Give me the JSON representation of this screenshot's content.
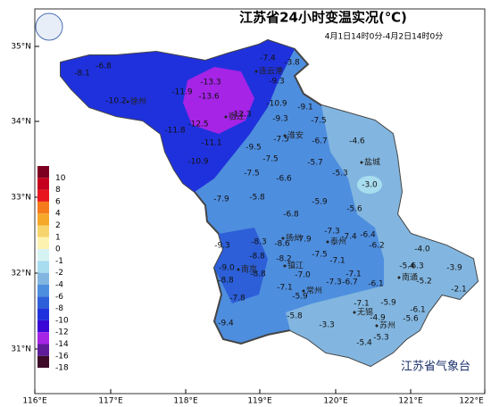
{
  "title": "江苏省24小时变温实况(℃)",
  "subtitle": "4月1日14时0分-4月2日14时0分",
  "agency": "江苏省气象台",
  "lat_labels": [
    "35°N",
    "34°N",
    "33°N",
    "32°N",
    "31°N"
  ],
  "lon_labels": [
    "116°E",
    "117°E",
    "118°E",
    "119°E",
    "120°E",
    "121°E",
    "122°E"
  ],
  "legend": [
    {
      "value": 10,
      "color": "#7d0021"
    },
    {
      "value": 8,
      "color": "#c4001c"
    },
    {
      "value": 6,
      "color": "#e8141e"
    },
    {
      "value": 4,
      "color": "#f57a1c"
    },
    {
      "value": 2,
      "color": "#f6a82a"
    },
    {
      "value": 1,
      "color": "#f8d46e"
    },
    {
      "value": 0,
      "color": "#fdf2b0"
    },
    {
      "value": -1,
      "color": "#d6f3f3"
    },
    {
      "value": -2,
      "color": "#a8dcef"
    },
    {
      "value": -4,
      "color": "#82b6e0"
    },
    {
      "value": -6,
      "color": "#4e8ede"
    },
    {
      "value": -8,
      "color": "#2c5fd8"
    },
    {
      "value": -10,
      "color": "#1f31dc"
    },
    {
      "value": -12,
      "color": "#3a06d6"
    },
    {
      "value": -14,
      "color": "#a524e6"
    },
    {
      "value": -16,
      "color": "#5e1c99"
    },
    {
      "value": -18,
      "color": "#3d0b28"
    }
  ],
  "stations": [
    "-7.4",
    "-3.8",
    "-6.8",
    "-8.1",
    "-9.3",
    "-13.3",
    "-11.9",
    "-13.6",
    "-10.2",
    "-10.9",
    "-9.1",
    "-12.3",
    "-9.3",
    "-7.5",
    "-12.5",
    "-11.8",
    "-7.5",
    "-6.7",
    "-4.6",
    "-11.1",
    "-9.5",
    "-7.5",
    "-5.7",
    "-10.9",
    "-5.3",
    "-7.5",
    "-6.6",
    "-3.0",
    "-7.9",
    "-5.8",
    "-5.9",
    "-5.6",
    "-6.8",
    "-7.3",
    "-6.4",
    "-7.4",
    "-9.3",
    "-8.3",
    "-8.6",
    "-7.9",
    "-6.2",
    "-4.0",
    "-7.5",
    "-8.8",
    "-8.2",
    "-7.1",
    "-9.0",
    "-8.8",
    "-5.4",
    "-6.3",
    "-3.9",
    "-7.0",
    "-7.1",
    "-6.7",
    "-8.8",
    "-7.3",
    "-6.1",
    "-5.2",
    "-2.1",
    "-7.1",
    "-5.9",
    "-7.8",
    "-5.9",
    "-6.1",
    "-7.1",
    "-5.8",
    "-4.9",
    "-5.6",
    "-9.4",
    "-3.3",
    "-5.3",
    "-5.4"
  ],
  "cities": [
    "连云港",
    "宿迁",
    "徐州",
    "淮安",
    "盐城",
    "扬州",
    "泰州",
    "镇江",
    "南京",
    "常州",
    "无锡",
    "苏州",
    "南通"
  ]
}
